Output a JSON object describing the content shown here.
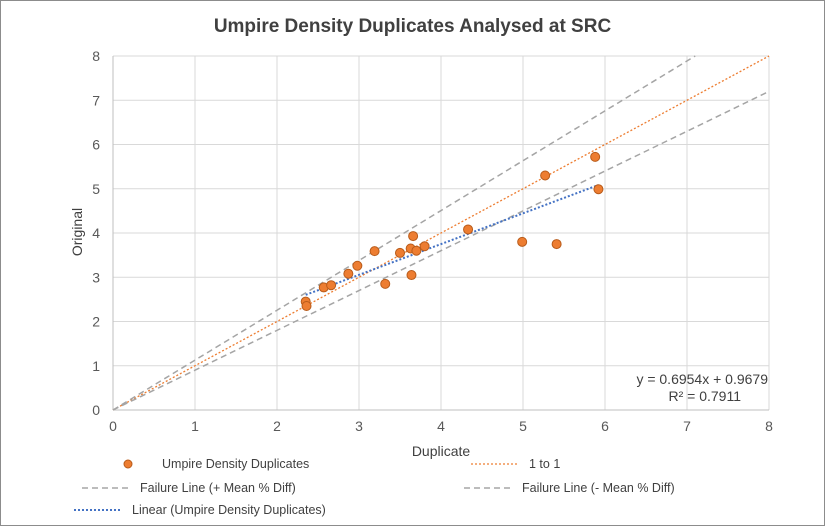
{
  "chart_data": {
    "type": "scatter",
    "title": "Umpire Density Duplicates Analysed at SRC",
    "xlabel": "Duplicate",
    "ylabel": "Original",
    "xlim": [
      0,
      8
    ],
    "ylim": [
      0,
      8
    ],
    "xticks": [
      "0",
      "1",
      "2",
      "3",
      "4",
      "5",
      "6",
      "7",
      "8"
    ],
    "yticks": [
      "0",
      "1",
      "2",
      "3",
      "4",
      "5",
      "6",
      "7",
      "8"
    ],
    "grid": true,
    "series": [
      {
        "name": "Umpire Density Duplicates",
        "kind": "scatter",
        "color": "#ED7D31",
        "edge_color": "#B85B1A",
        "points": [
          {
            "x": 2.35,
            "y": 2.45
          },
          {
            "x": 2.36,
            "y": 2.35
          },
          {
            "x": 2.57,
            "y": 2.77
          },
          {
            "x": 2.66,
            "y": 2.82
          },
          {
            "x": 2.87,
            "y": 3.08
          },
          {
            "x": 2.98,
            "y": 3.26
          },
          {
            "x": 3.19,
            "y": 3.59
          },
          {
            "x": 3.32,
            "y": 2.85
          },
          {
            "x": 3.5,
            "y": 3.55
          },
          {
            "x": 3.64,
            "y": 3.05
          },
          {
            "x": 3.63,
            "y": 3.65
          },
          {
            "x": 3.66,
            "y": 3.93
          },
          {
            "x": 3.7,
            "y": 3.6
          },
          {
            "x": 3.8,
            "y": 3.7
          },
          {
            "x": 4.33,
            "y": 4.08
          },
          {
            "x": 4.99,
            "y": 3.8
          },
          {
            "x": 5.27,
            "y": 5.3
          },
          {
            "x": 5.41,
            "y": 3.75
          },
          {
            "x": 5.88,
            "y": 5.72
          },
          {
            "x": 5.92,
            "y": 4.99
          }
        ]
      },
      {
        "name": "1 to 1",
        "kind": "line",
        "color": "#ED7D31",
        "dash": "dot",
        "x": [
          0,
          8
        ],
        "y": [
          0,
          8
        ]
      },
      {
        "name": "Failure Line (+ Mean % Diff)",
        "kind": "line",
        "color": "#A5A5A5",
        "dash": "dash",
        "x": [
          0,
          7.1
        ],
        "y": [
          0,
          8
        ]
      },
      {
        "name": "Failure Line (- Mean % Diff)",
        "kind": "line",
        "color": "#A5A5A5",
        "dash": "dash",
        "x": [
          0,
          8
        ],
        "y": [
          0,
          7.2
        ]
      },
      {
        "name": "Linear (Umpire Density Duplicates)",
        "kind": "trendline",
        "color": "#4472C4",
        "dash": "dot",
        "x": [
          2.35,
          5.92
        ],
        "slope": 0.6954,
        "intercept": 0.9679
      }
    ],
    "annotations": {
      "equation": "y = 0.6954x + 0.9679",
      "r_squared": "R² = 0.7911"
    },
    "legend": {
      "position": "bottom",
      "entries": [
        "Umpire Density Duplicates",
        "1 to 1",
        "Failure Line (+ Mean % Diff)",
        "Failure Line (- Mean % Diff)",
        "Linear (Umpire Density Duplicates)"
      ]
    }
  }
}
